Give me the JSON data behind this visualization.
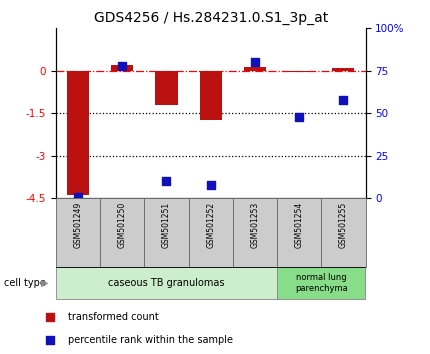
{
  "title": "GDS4256 / Hs.284231.0.S1_3p_at",
  "samples": [
    "GSM501249",
    "GSM501250",
    "GSM501251",
    "GSM501252",
    "GSM501253",
    "GSM501254",
    "GSM501255"
  ],
  "transformed_count": [
    -4.4,
    0.2,
    -1.2,
    -1.75,
    0.15,
    -0.05,
    0.1
  ],
  "percentile_rank": [
    1,
    78,
    10,
    8,
    80,
    48,
    58
  ],
  "ylim_left": [
    -4.5,
    1.5
  ],
  "ylim_right": [
    0,
    100
  ],
  "yticks_left": [
    0,
    -1.5,
    -3,
    -4.5
  ],
  "yticks_right": [
    0,
    25,
    50,
    75,
    100
  ],
  "dotted_lines": [
    -1.5,
    -3
  ],
  "bar_color": "#bb1111",
  "dot_color": "#1111bb",
  "group1_label": "caseous TB granulomas",
  "group2_label": "normal lung\nparenchyma",
  "group1_color": "#cceecc",
  "group2_color": "#88dd88",
  "cell_type_label": "cell type",
  "legend_red_label": "transformed count",
  "legend_blue_label": "percentile rank within the sample",
  "bar_width": 0.5,
  "dot_size": 40,
  "title_fontsize": 10,
  "tick_fontsize": 7.5,
  "label_fontsize": 7.5
}
